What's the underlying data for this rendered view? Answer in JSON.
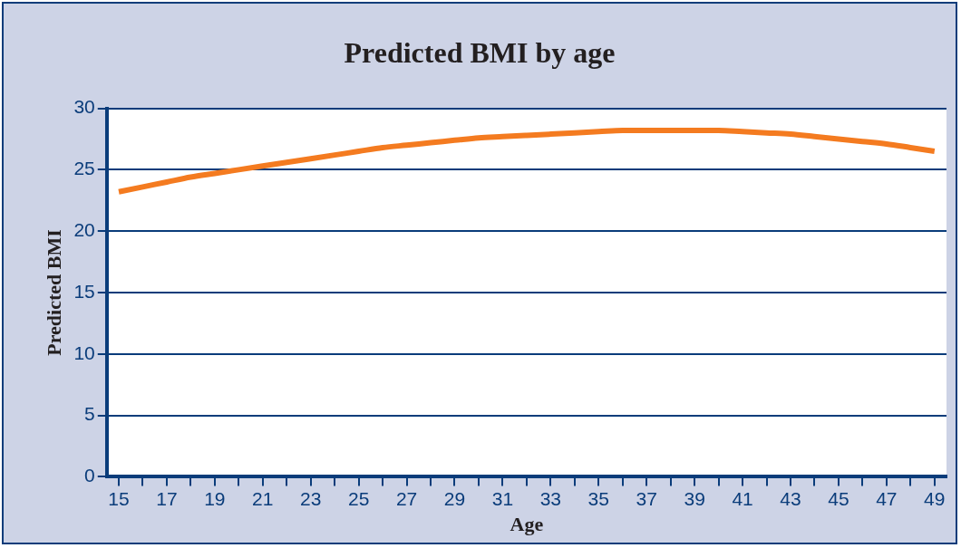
{
  "chart_data": {
    "type": "line",
    "title": "Predicted BMI by age",
    "xlabel": "Age",
    "ylabel": "Predicted BMI",
    "categories": [
      "15",
      null,
      "17",
      null,
      "19",
      null,
      "21",
      null,
      "23",
      null,
      "25",
      null,
      "27",
      null,
      "29",
      null,
      "31",
      null,
      "33",
      null,
      "35",
      null,
      "37",
      null,
      "39",
      null,
      "41",
      null,
      "43",
      null,
      "45",
      null,
      "47",
      null,
      "49"
    ],
    "series": [
      {
        "color": "#f47b20",
        "values": [
          23.2,
          23.6,
          24.0,
          24.4,
          24.7,
          25.0,
          25.3,
          25.6,
          25.9,
          26.2,
          26.5,
          26.8,
          27.0,
          27.2,
          27.4,
          27.6,
          27.7,
          27.8,
          27.9,
          28.0,
          28.1,
          28.2,
          28.2,
          28.2,
          28.2,
          28.2,
          28.1,
          28.0,
          27.9,
          27.7,
          27.5,
          27.3,
          27.1,
          26.8,
          26.5
        ]
      }
    ],
    "ylim": [
      0,
      30
    ],
    "yticks": [
      0,
      5,
      10,
      15,
      20,
      25,
      30
    ],
    "grid": "y",
    "legend": false,
    "marker": "none",
    "line_style": "solid"
  }
}
